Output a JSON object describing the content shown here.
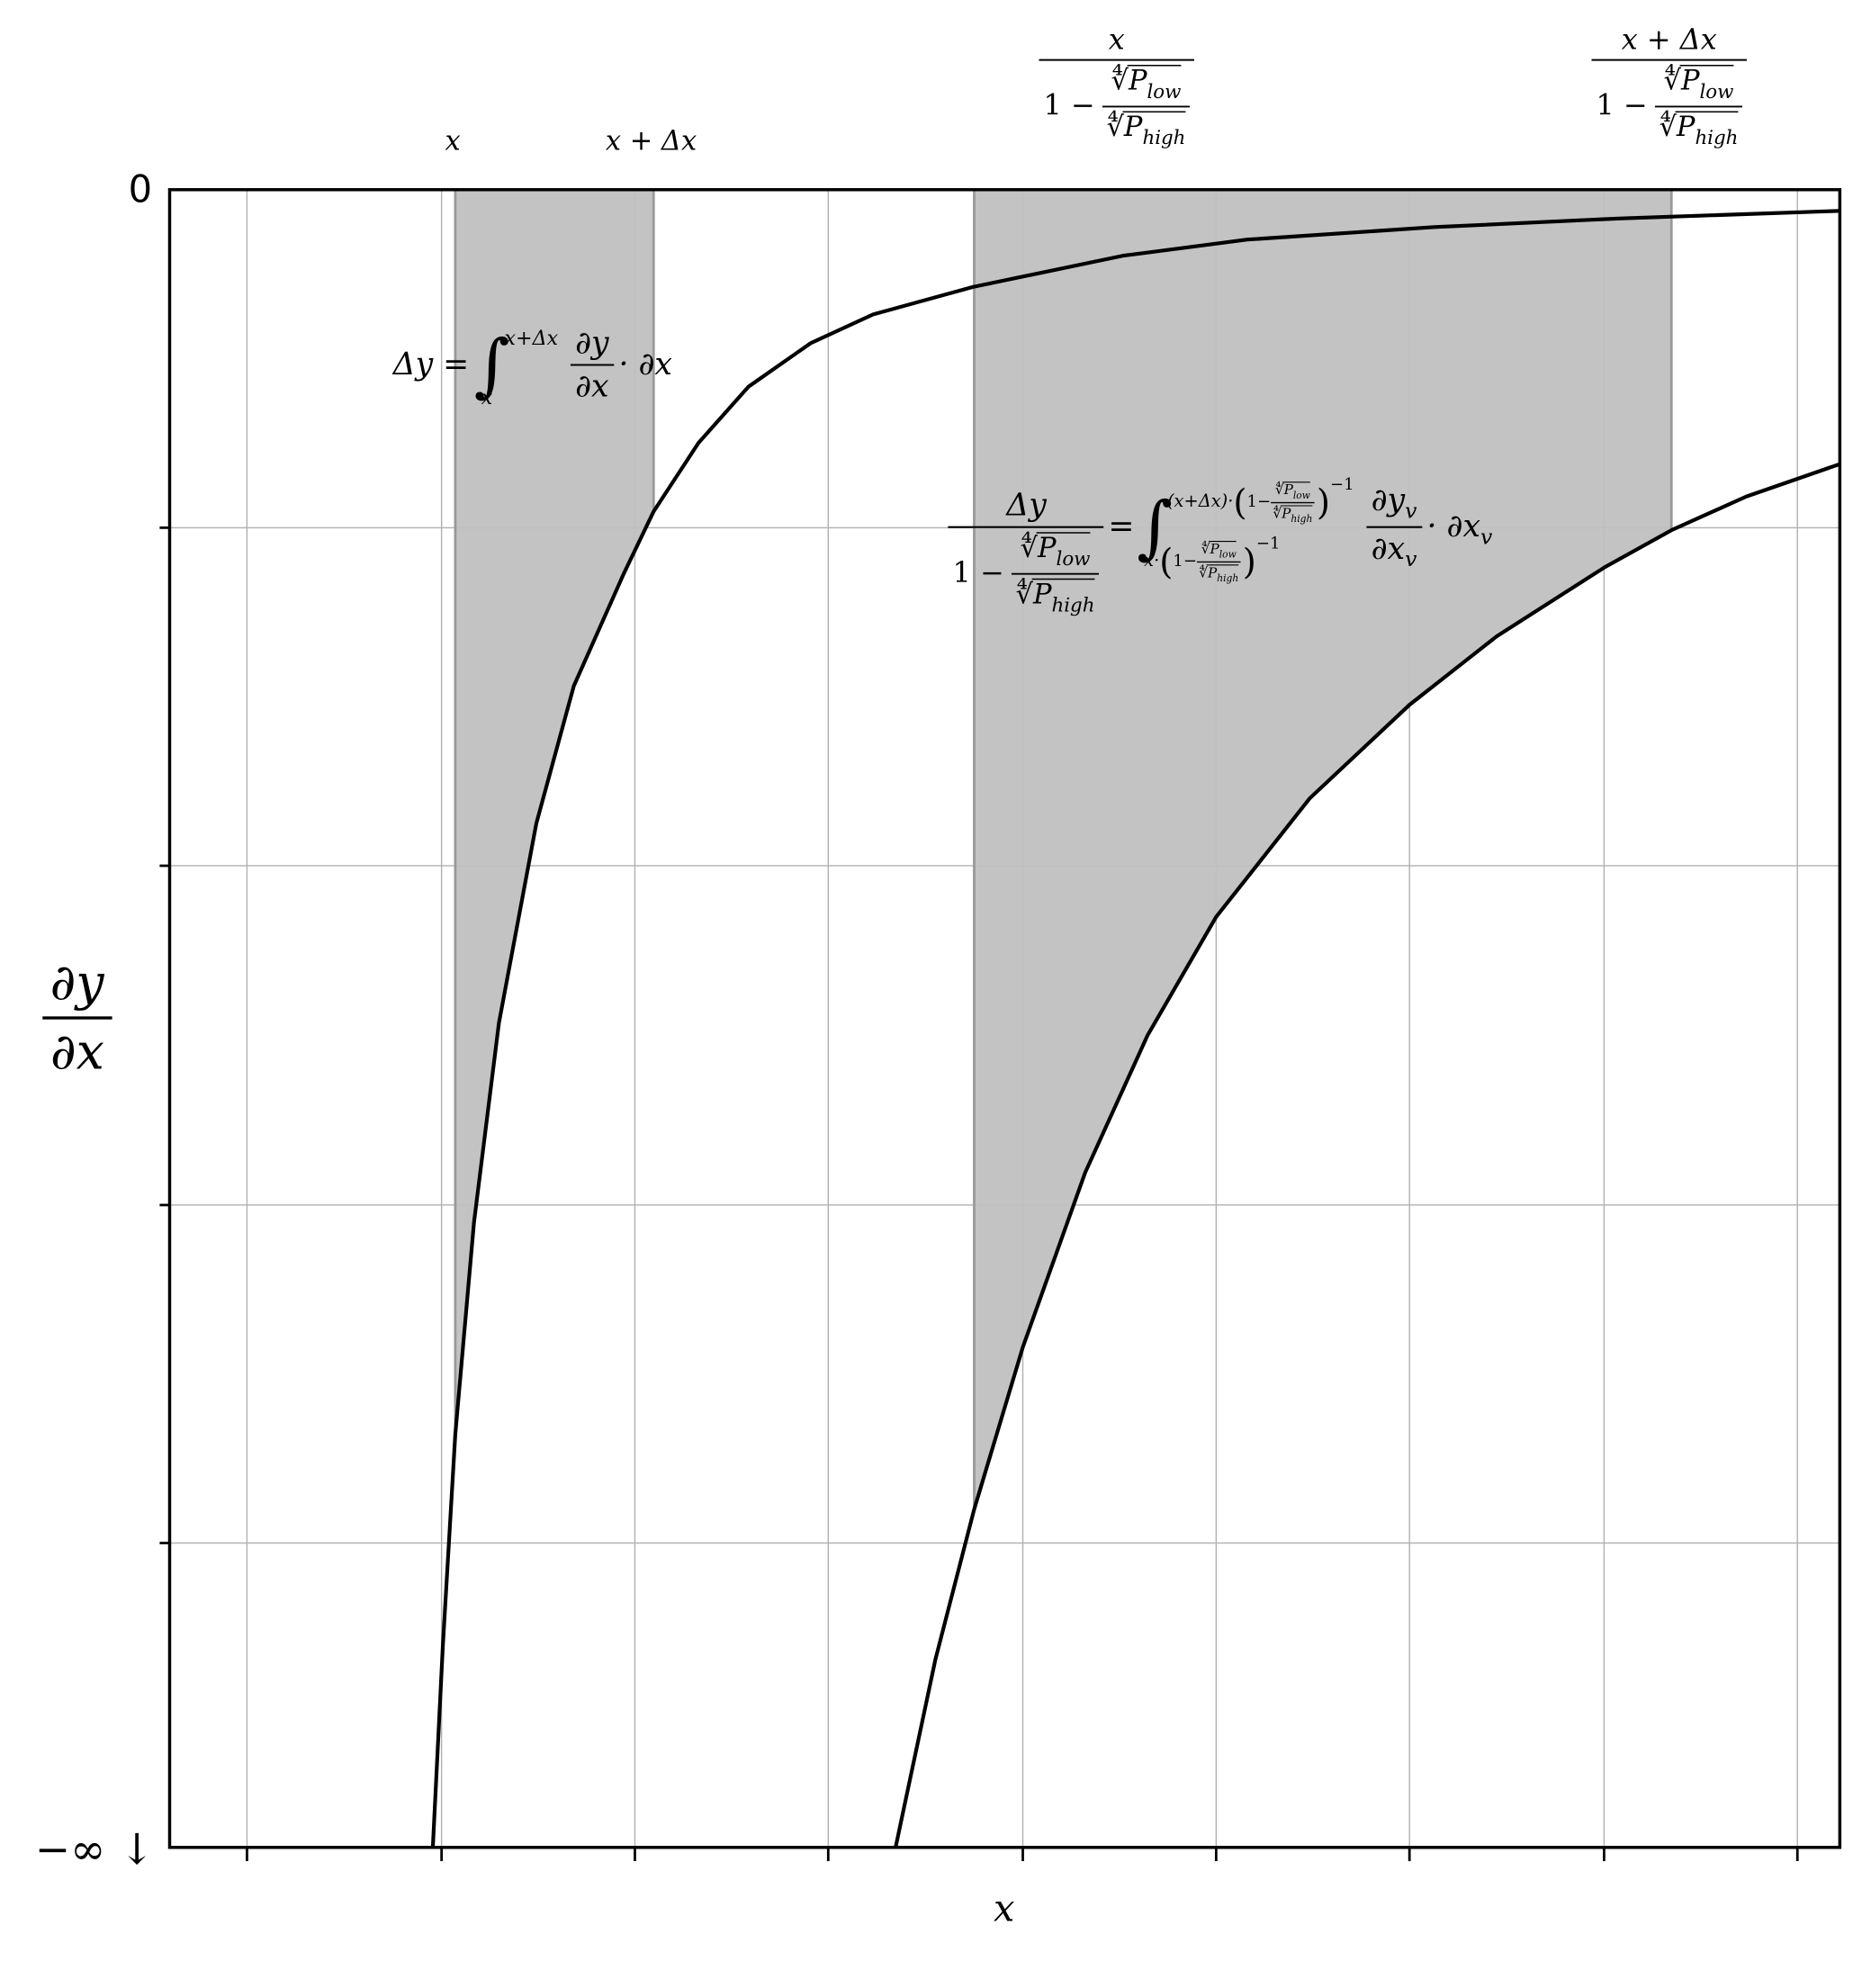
{
  "axes": {
    "y_top": "0",
    "y_bottom": "−∞ ↓",
    "y_label": {
      "num": "∂y",
      "den": "∂x"
    },
    "x_label": "x"
  },
  "top_labels": [
    "x",
    "x + Δx"
  ],
  "ratio_labels": [
    {
      "num": "x",
      "den_prefix": "1 −"
    },
    {
      "num": "x + Δx",
      "den_prefix": "1 −"
    }
  ],
  "root_ratio": {
    "num_root": "∜",
    "num_base": "P",
    "num_sub": "low",
    "den_root": "∜",
    "den_base": "P",
    "den_sub": "high"
  },
  "formula_1": {
    "lhs": "Δy =",
    "integral": "∫",
    "upper": "x+Δx",
    "lower": "x",
    "num": "∂y",
    "den": "∂x",
    "tail": "· ∂x"
  },
  "formula_2": {
    "num": "Δy",
    "den_prefix": "1 −",
    "equals": "=",
    "integral": "∫",
    "upper_prefix": "(x+Δx)·",
    "lower_prefix": "x·",
    "open": "(",
    "inner_prefix": "1−",
    "close": ")",
    "power": "−1",
    "integrand_num": "∂y",
    "integrand_num_sub": "v",
    "integrand_den": "∂x",
    "integrand_den_sub": "v",
    "tail": "· ∂x",
    "tail_sub": "v"
  }
}
